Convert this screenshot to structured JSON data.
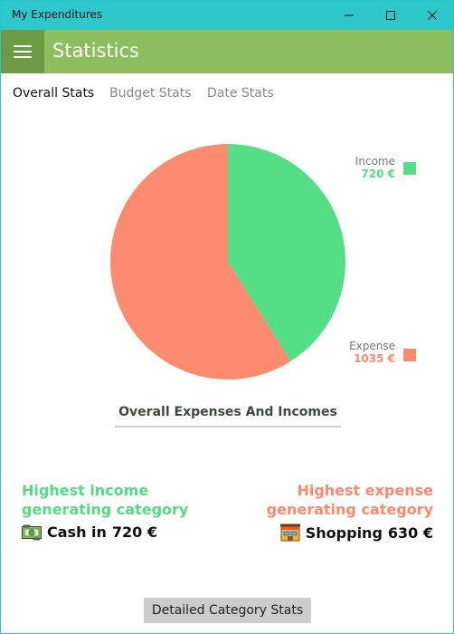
{
  "window": {
    "title": "My Expenditures"
  },
  "appbar": {
    "title": "Statistics"
  },
  "tabs": [
    {
      "label": "Overall Stats",
      "active": true
    },
    {
      "label": "Budget Stats",
      "active": false
    },
    {
      "label": "Date Stats",
      "active": false
    }
  ],
  "chart_data": {
    "type": "pie",
    "categories": [
      "Income",
      "Expense"
    ],
    "values": [
      720,
      1035
    ],
    "value_labels": [
      "720 €",
      "1035 €"
    ],
    "colors": [
      "#55de86",
      "#fc8b70"
    ],
    "title": "Overall Expenses And Incomes",
    "legend_position": "right"
  },
  "highlights": {
    "income": {
      "heading_line1": "Highest income",
      "heading_line2": "generating category",
      "category": "Cash in",
      "amount": "720 €",
      "icon": "cash-icon",
      "color": "#55d984"
    },
    "expense": {
      "heading_line1": "Highest expense",
      "heading_line2": "generating category",
      "category": "Shopping",
      "amount": "630 €",
      "icon": "shopping-icon",
      "color": "#fa8a6e"
    }
  },
  "footer": {
    "detail_button": "Detailed Category Stats"
  },
  "colors": {
    "titlebar": "#2ec8cc",
    "appbar": "#8cbd5f",
    "hamburger_bg": "#6d9a45"
  }
}
